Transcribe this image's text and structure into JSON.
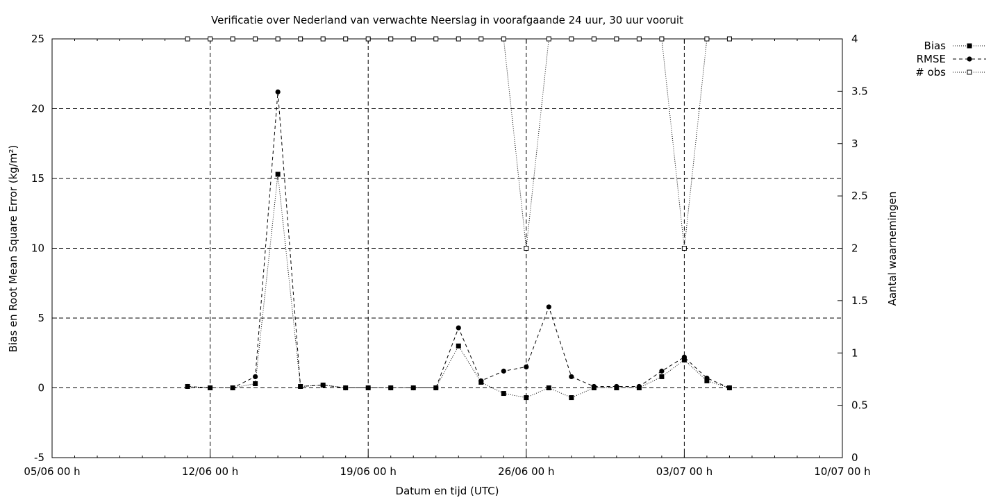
{
  "chart_data": {
    "type": "line",
    "title": "Verificatie over Nederland van verwachte Neerslag in voorafgaande 24 uur, 30 uur vooruit",
    "xlabel": "Datum en tijd (UTC)",
    "ylabel": "Bias en Root Mean Square Error (kg/m²)",
    "y2label": "Aantal waarnemingen",
    "x_ticks": [
      "05/06 00 h",
      "12/06 00 h",
      "19/06 00 h",
      "26/06 00 h",
      "03/07 00 h",
      "10/07 00 h"
    ],
    "y_ticks": [
      "-5",
      "0",
      "5",
      "10",
      "15",
      "20",
      "25"
    ],
    "y2_ticks": [
      "0",
      "0.5",
      "1",
      "1.5",
      "2",
      "2.5",
      "3",
      "3.5",
      "4"
    ],
    "xlim": [
      "2000-06-05",
      "2000-07-10"
    ],
    "ylim": [
      -5,
      25
    ],
    "y2lim": [
      0,
      4
    ],
    "grid": true,
    "legend_position": "top-right outside",
    "x": [
      "11/06",
      "12/06",
      "13/06",
      "14/06",
      "15/06",
      "16/06",
      "17/06",
      "18/06",
      "19/06",
      "20/06",
      "21/06",
      "22/06",
      "23/06",
      "24/06",
      "25/06",
      "26/06",
      "27/06",
      "28/06",
      "29/06",
      "30/06",
      "01/07",
      "02/07",
      "03/07",
      "04/07",
      "05/07"
    ],
    "series": [
      {
        "name": "Bias",
        "axis": "left",
        "marker": "filled-square",
        "line": "dotted",
        "values": [
          0.1,
          0.0,
          0.0,
          0.3,
          15.3,
          0.1,
          0.2,
          0.0,
          0.0,
          0.0,
          0.0,
          0.0,
          3.0,
          0.4,
          -0.4,
          -0.7,
          0.0,
          -0.7,
          0.0,
          0.0,
          0.0,
          0.8,
          2.0,
          0.5,
          0.0
        ]
      },
      {
        "name": "RMSE",
        "axis": "left",
        "marker": "filled-circle",
        "line": "dashed",
        "values": [
          0.1,
          0.0,
          0.0,
          0.8,
          21.2,
          0.1,
          0.2,
          0.0,
          0.0,
          0.0,
          0.0,
          0.0,
          4.3,
          0.5,
          1.2,
          1.5,
          5.8,
          0.8,
          0.1,
          0.1,
          0.1,
          1.2,
          2.2,
          0.7,
          0.0
        ]
      },
      {
        "name": "# obs",
        "axis": "right",
        "marker": "open-square",
        "line": "dotted",
        "values": [
          4,
          4,
          4,
          4,
          4,
          4,
          4,
          4,
          4,
          4,
          4,
          4,
          4,
          4,
          4,
          2,
          4,
          4,
          4,
          4,
          4,
          4,
          2,
          4,
          4
        ]
      }
    ]
  }
}
